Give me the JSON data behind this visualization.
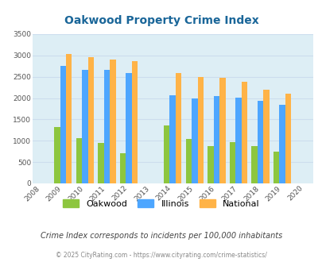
{
  "title": "Oakwood Property Crime Index",
  "years": [
    2009,
    2010,
    2011,
    2012,
    2014,
    2015,
    2016,
    2017,
    2018,
    2019
  ],
  "oakwood": [
    1320,
    1060,
    950,
    700,
    1350,
    1040,
    880,
    960,
    870,
    750
  ],
  "illinois": [
    2750,
    2670,
    2670,
    2590,
    2060,
    1990,
    2050,
    2010,
    1940,
    1840
  ],
  "national": [
    3030,
    2950,
    2900,
    2860,
    2590,
    2500,
    2475,
    2380,
    2200,
    2110
  ],
  "oakwood_color": "#8dc63f",
  "illinois_color": "#4da6ff",
  "national_color": "#ffb347",
  "bg_color": "#ddeef5",
  "fig_bg": "#ffffff",
  "ylim": [
    0,
    3500
  ],
  "yticks": [
    0,
    500,
    1000,
    1500,
    2000,
    2500,
    3000,
    3500
  ],
  "xtick_years": [
    2008,
    2009,
    2010,
    2011,
    2012,
    2013,
    2014,
    2015,
    2016,
    2017,
    2018,
    2019,
    2020
  ],
  "title_color": "#1a6699",
  "subtitle": "Crime Index corresponds to incidents per 100,000 inhabitants",
  "subtitle_color": "#444444",
  "footer": "© 2025 CityRating.com - https://www.cityrating.com/crime-statistics/",
  "footer_color": "#888888",
  "bar_width": 0.27,
  "grid_color": "#ccddee"
}
